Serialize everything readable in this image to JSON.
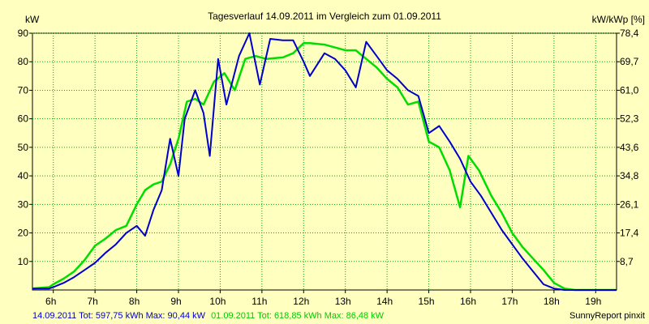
{
  "chart_data": {
    "type": "line",
    "title": "Tagesverlauf 14.09.2011 im Vergleich zum 01.09.2011",
    "ylabel_left": "kW",
    "ylabel_right": "kW/kWp [%]",
    "ylim": [
      0,
      90
    ],
    "xlim": [
      5.5,
      19.5
    ],
    "grid": true,
    "x_ticks": [
      "6h",
      "7h",
      "8h",
      "9h",
      "10h",
      "11h",
      "12h",
      "13h",
      "14h",
      "15h",
      "16h",
      "17h",
      "18h",
      "19h"
    ],
    "y_ticks_left": [
      "10",
      "20",
      "30",
      "40",
      "50",
      "60",
      "70",
      "80",
      "90"
    ],
    "y_ticks_right": [
      "8,7",
      "17,4",
      "26,1",
      "34,8",
      "43,6",
      "52,3",
      "61,0",
      "69,7",
      "78,4"
    ],
    "series": [
      {
        "name": "14.09.2011",
        "color": "#0000CC",
        "x": [
          5.5,
          5.9,
          6.0,
          6.25,
          6.5,
          6.75,
          7.0,
          7.25,
          7.5,
          7.75,
          8.0,
          8.2,
          8.4,
          8.6,
          8.8,
          9.0,
          9.15,
          9.4,
          9.6,
          9.75,
          9.95,
          10.15,
          10.45,
          10.7,
          10.95,
          11.2,
          11.5,
          11.75,
          12.0,
          12.15,
          12.5,
          12.75,
          13.0,
          13.25,
          13.5,
          13.75,
          14.0,
          14.25,
          14.5,
          14.75,
          15.0,
          15.25,
          15.5,
          15.75,
          16.0,
          16.25,
          16.5,
          16.75,
          17.0,
          17.25,
          17.5,
          17.75,
          18.0,
          18.25,
          18.5,
          19.0,
          19.5
        ],
        "values": [
          0.5,
          0.5,
          1,
          2.5,
          4.5,
          7,
          9.5,
          13,
          16,
          20,
          22.5,
          19,
          28,
          35,
          53,
          40,
          60,
          70,
          62,
          47,
          81,
          65,
          82,
          90,
          72,
          88,
          87.5,
          87.5,
          80,
          75,
          83,
          81,
          77,
          71,
          87,
          82,
          77,
          74,
          70,
          68,
          55,
          57.5,
          52,
          46,
          38,
          33,
          27,
          21,
          16,
          11,
          6.5,
          2,
          0.5,
          0,
          0,
          0,
          0
        ]
      },
      {
        "name": "01.09.2011",
        "color": "#00DD00",
        "x": [
          5.5,
          5.9,
          6.0,
          6.25,
          6.5,
          6.75,
          7.0,
          7.25,
          7.5,
          7.75,
          8.0,
          8.2,
          8.4,
          8.6,
          8.8,
          9.0,
          9.2,
          9.4,
          9.6,
          9.85,
          10.1,
          10.35,
          10.6,
          10.85,
          11.1,
          11.5,
          11.75,
          12.0,
          12.15,
          12.5,
          12.75,
          13.0,
          13.25,
          13.5,
          13.75,
          14.0,
          14.25,
          14.5,
          14.75,
          15.0,
          15.25,
          15.5,
          15.75,
          15.95,
          16.2,
          16.5,
          16.75,
          17.0,
          17.25,
          17.5,
          17.75,
          18.0,
          18.25,
          18.5,
          18.75,
          19.0,
          19.5
        ],
        "values": [
          0.5,
          1,
          2,
          4,
          6.5,
          10.5,
          15.5,
          18,
          21,
          22.5,
          30,
          35,
          37,
          38,
          44,
          53,
          66,
          67,
          65,
          73,
          76,
          70,
          81,
          82,
          81,
          81.5,
          83,
          86.5,
          86.5,
          86,
          85,
          84,
          84,
          81,
          78,
          74,
          71,
          65,
          66,
          52,
          50,
          42,
          29,
          47,
          42,
          33,
          27,
          20,
          15,
          11,
          7,
          2.5,
          0.5,
          0,
          0,
          0,
          0
        ]
      }
    ],
    "footer_left_blue": "14.09.2011 Tot: 597,75 kWh Max: 90,44 kW",
    "footer_left_green": "01.09.2011 Tot: 618,85 kWh Max: 86,48 kW",
    "footer_right": "SunnyReport pinxit"
  }
}
